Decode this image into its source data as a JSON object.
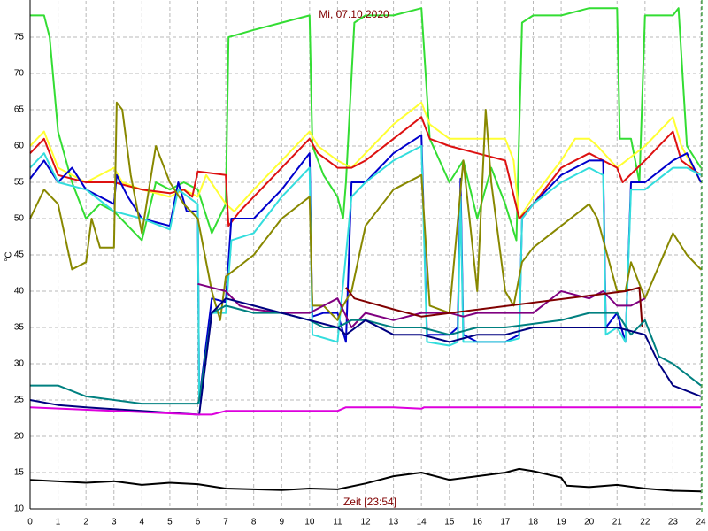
{
  "chart_data": {
    "type": "line",
    "title": "Mi, 07.10.2020",
    "x_label": "Zeit [23:54]",
    "y_label": "°C",
    "xlim": [
      0,
      24
    ],
    "ylim": [
      10,
      80
    ],
    "xticks": [
      0,
      1,
      2,
      3,
      4,
      5,
      6,
      7,
      8,
      9,
      10,
      11,
      12,
      13,
      14,
      15,
      16,
      17,
      18,
      19,
      20,
      21,
      22,
      23,
      24
    ],
    "yticks": [
      10,
      15,
      20,
      25,
      30,
      35,
      40,
      45,
      50,
      55,
      60,
      65,
      70,
      75
    ],
    "grid": true,
    "series": [
      {
        "color": "#33dd33",
        "x": [
          0,
          0.5,
          0.7,
          1,
          1.5,
          2,
          2.5,
          3,
          4,
          4.5,
          5,
          5.5,
          6,
          6.5,
          7,
          7.1,
          8,
          9,
          10,
          10.1,
          10.5,
          11,
          11.2,
          11.3,
          11.6,
          12,
          13,
          14,
          14.3,
          15,
          15.5,
          16,
          16.5,
          17,
          17.4,
          17.6,
          18,
          19,
          20,
          21,
          21.1,
          21.5,
          21.8,
          22,
          22.3,
          23,
          23.2,
          23.5,
          24
        ],
        "values": [
          78,
          78,
          75,
          62,
          55,
          50,
          52,
          51,
          47,
          55,
          54,
          55,
          54,
          48,
          52,
          75,
          76,
          77,
          78,
          60,
          56,
          53,
          50,
          55,
          77,
          78,
          78,
          79,
          61,
          55,
          58,
          50,
          57,
          52,
          47,
          77,
          78,
          78,
          79,
          79,
          61,
          61,
          55,
          78,
          78,
          78,
          79,
          60,
          57
        ]
      },
      {
        "color": "#ffff33",
        "x": [
          0,
          0.5,
          1,
          2,
          3,
          3.3,
          4,
          5,
          5.5,
          6,
          6.3,
          7,
          7.3,
          8,
          9,
          10,
          10.3,
          11,
          11.5,
          12,
          13,
          14,
          14.3,
          15,
          16,
          17,
          17.3,
          17.5,
          18,
          19,
          19.5,
          20,
          20.3,
          21,
          22,
          23,
          23.3,
          24
        ],
        "values": [
          60,
          62,
          57,
          55,
          57,
          55,
          54,
          53,
          54,
          53,
          56,
          52,
          51,
          54,
          58,
          62,
          60,
          58,
          57,
          59,
          63,
          66,
          63,
          61,
          61,
          61,
          58,
          50,
          53,
          58,
          61,
          61,
          60,
          57,
          60,
          64,
          60,
          55
        ]
      },
      {
        "color": "#dd1111",
        "x": [
          0,
          0.5,
          1,
          2,
          3,
          4,
          5,
          5.5,
          5.8,
          6,
          7,
          7.1,
          7.5,
          8,
          9,
          10,
          10.3,
          11,
          11.5,
          12,
          13,
          14,
          14.3,
          15,
          16,
          17,
          17.5,
          18,
          19,
          20,
          20.5,
          21,
          21.2,
          22,
          23,
          23.3,
          24
        ],
        "values": [
          59,
          61,
          56,
          55,
          55,
          54,
          53.5,
          54,
          53,
          56.5,
          56,
          49,
          51,
          53,
          57,
          61,
          59,
          57,
          57,
          58,
          61,
          64,
          61,
          60,
          59,
          58,
          50,
          52,
          57,
          59,
          58,
          57,
          55,
          58,
          62,
          58,
          56
        ]
      },
      {
        "color": "#0000cc",
        "x": [
          0,
          0.5,
          1,
          1.5,
          2,
          3,
          3.1,
          3.5,
          4,
          5,
          5.3,
          5.6,
          6,
          6.05,
          6.5,
          7,
          7.2,
          8,
          9,
          9.8,
          10,
          10.1,
          10.5,
          11,
          11.3,
          11.5,
          12,
          13,
          14,
          14.2,
          15,
          15.3,
          15.4,
          15.5,
          16,
          17,
          17.5,
          17.6,
          18,
          19,
          20,
          20.5,
          20.6,
          21,
          21.3,
          21.5,
          22,
          23,
          23.5,
          24
        ],
        "values": [
          55.5,
          58,
          55,
          57,
          54,
          52,
          56,
          53,
          50,
          49,
          55,
          51,
          51,
          25,
          39,
          38.5,
          50,
          50,
          54,
          58,
          59,
          36.5,
          37,
          37,
          33,
          55,
          55,
          59,
          61.5,
          34,
          34,
          35,
          55.5,
          34,
          33,
          33,
          34,
          50,
          52,
          56,
          58,
          58,
          35,
          37,
          33,
          55,
          55,
          58,
          59,
          55
        ]
      },
      {
        "color": "#33dddd",
        "x": [
          0,
          0.5,
          1,
          2,
          3,
          4,
          5,
          5.3,
          6,
          6.05,
          6.5,
          7,
          7.2,
          8,
          9,
          10,
          10.1,
          11,
          11.5,
          12,
          13,
          14,
          14.2,
          15,
          15.3,
          15.4,
          15.5,
          16,
          17,
          17.5,
          17.6,
          18,
          19,
          20,
          20.5,
          20.6,
          21,
          21.3,
          21.5,
          22,
          23,
          23.5,
          24
        ],
        "values": [
          57,
          59,
          55,
          54,
          51,
          50,
          48.5,
          54,
          52,
          24.5,
          37,
          37,
          47,
          48,
          53,
          57,
          34,
          33,
          53,
          55,
          58,
          60,
          33,
          32.5,
          33,
          53,
          33,
          33,
          33,
          33.5,
          50,
          52,
          55,
          57,
          56,
          34,
          35,
          33,
          54,
          54,
          57,
          57,
          56
        ]
      },
      {
        "color": "#888800",
        "x": [
          0,
          0.5,
          1,
          1.5,
          2,
          2.2,
          2.5,
          3,
          3.1,
          3.3,
          3.6,
          4,
          4.5,
          5,
          5.5,
          6,
          6.5,
          6.8,
          7,
          8,
          9,
          10,
          10.1,
          10.5,
          11,
          11.2,
          11.5,
          12,
          13,
          14,
          14.3,
          15,
          15.5,
          16,
          16.3,
          16.5,
          17,
          17.3,
          17.6,
          18,
          19,
          20,
          20.3,
          21,
          21.3,
          21.5,
          22,
          23,
          23.5,
          24
        ],
        "values": [
          50,
          54,
          52,
          43,
          44,
          50,
          46,
          46,
          66,
          65,
          56,
          48,
          60,
          55,
          52,
          50,
          40,
          36,
          42,
          45,
          50,
          53,
          38,
          38,
          36,
          38,
          40,
          49,
          54,
          56,
          38,
          37,
          58,
          40,
          65,
          55,
          40,
          38,
          44,
          46,
          49,
          52,
          50,
          40,
          40,
          44,
          39,
          48,
          45,
          43
        ]
      },
      {
        "color": "#800080",
        "x": [
          6,
          7,
          7.5,
          8,
          9,
          10,
          10.5,
          11,
          11.5,
          12,
          13,
          14,
          15,
          15.5,
          16,
          17,
          18,
          19,
          20,
          20.5,
          21,
          21.5,
          22
        ],
        "values": [
          41,
          40,
          38,
          37.5,
          37,
          37,
          38,
          39,
          35,
          37,
          36,
          37,
          37,
          36.5,
          37,
          37,
          37,
          40,
          39,
          40,
          38,
          38,
          39
        ]
      },
      {
        "color": "#800000",
        "x": [
          11.3,
          11.6,
          13,
          14,
          21.3,
          21.8,
          21.9
        ],
        "values": [
          40.5,
          39,
          37.5,
          36.5,
          40,
          40.5,
          35
        ]
      },
      {
        "color": "#008080",
        "x": [
          0,
          1,
          2,
          4,
          6,
          6.05,
          6.5,
          7,
          8,
          9,
          10,
          10.5,
          11,
          11.5,
          12,
          13,
          14,
          15,
          16,
          17,
          18,
          19,
          20,
          21,
          21.5,
          22,
          22.5,
          23,
          24
        ],
        "values": [
          27,
          27,
          25.5,
          24.5,
          24.5,
          25,
          37,
          38,
          37,
          37,
          36,
          35,
          35,
          36,
          36,
          35,
          35,
          34,
          35,
          35,
          35.5,
          36,
          37,
          37,
          34,
          36,
          31,
          30,
          27
        ]
      },
      {
        "color": "#000080",
        "x": [
          0,
          1,
          2,
          4,
          6,
          6.05,
          6.5,
          7,
          8,
          9,
          10,
          11,
          11.3,
          12,
          13,
          14,
          15,
          16,
          17,
          18,
          19,
          20,
          21,
          22,
          22.5,
          23,
          24
        ],
        "values": [
          25,
          24.3,
          24,
          23.5,
          23,
          23,
          37,
          39,
          38,
          37,
          36,
          35,
          34,
          36,
          34,
          34,
          33,
          34,
          34,
          35,
          35,
          35,
          35,
          34,
          30,
          27,
          25.5
        ]
      },
      {
        "color": "#dd00dd",
        "x": [
          0,
          3,
          6,
          6.5,
          7,
          11,
          11.3,
          13,
          14,
          14.1,
          24
        ],
        "values": [
          24,
          23.5,
          23,
          23,
          23.5,
          23.5,
          24,
          24,
          23.8,
          24,
          24
        ]
      },
      {
        "color": "#000000",
        "x": [
          0,
          2,
          3,
          4,
          5,
          6,
          7,
          9,
          10,
          11,
          12,
          13,
          14,
          15,
          16,
          17,
          17.5,
          18,
          19,
          19.2,
          20,
          21,
          22,
          23,
          24
        ],
        "values": [
          14,
          13.6,
          13.8,
          13.3,
          13.6,
          13.4,
          12.8,
          12.6,
          12.8,
          12.7,
          13.5,
          14.5,
          15,
          14,
          14.5,
          15,
          15.5,
          15.2,
          14.3,
          13.2,
          13,
          13.3,
          12.8,
          12.5,
          12.4
        ]
      }
    ]
  }
}
